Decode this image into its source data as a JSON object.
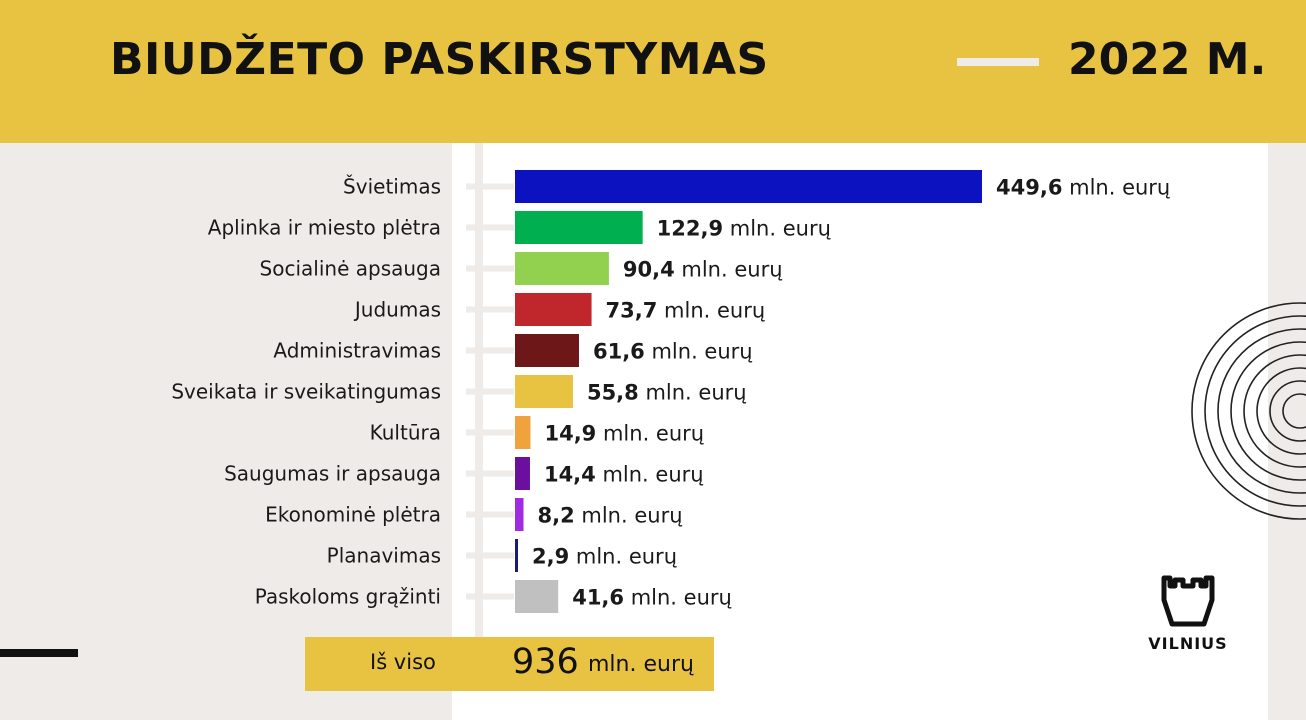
{
  "header": {
    "title": "BIUDŽETO PASKIRSTYMAS",
    "year": "2022 M."
  },
  "chart_data": {
    "type": "bar",
    "orientation": "horizontal",
    "categories": [
      "Švietimas",
      "Aplinka ir miesto plėtra",
      "Socialinė apsauga",
      "Judumas",
      "Administravimas",
      "Sveikata ir sveikatingumas",
      "Kultūra",
      "Saugumas ir apsauga",
      "Ekonominė plėtra",
      "Planavimas",
      "Paskoloms grąžinti"
    ],
    "values": [
      449.6,
      122.9,
      90.4,
      73.7,
      61.6,
      55.8,
      14.9,
      14.4,
      8.2,
      2.9,
      41.6
    ],
    "value_labels": [
      "449,6",
      "122,9",
      "90,4",
      "73,7",
      "61,6",
      "55,8",
      "14,9",
      "14,4",
      "8,2",
      "2,9",
      "41,6"
    ],
    "unit": "mln. eurų",
    "colors": [
      "#0c12c0",
      "#00b050",
      "#92d050",
      "#c0272d",
      "#6d1719",
      "#e8c342",
      "#f0a23c",
      "#6a0f9e",
      "#a02be0",
      "#1a1a7a",
      "#c0c0c0"
    ],
    "label_colors": [
      "#1a1a1a",
      "#1a1a1a",
      "#1a1a1a",
      "#1a1a1a",
      "#1a1a1a",
      "#1a1a1a",
      "#1a1a1a",
      "#1a1a1a",
      "#1a1a1a",
      "#1a1a1a",
      "#666666"
    ],
    "xlim": [
      0,
      449.6
    ]
  },
  "total": {
    "label": "Iš viso",
    "value": "936",
    "unit": "mln. eurų"
  },
  "logo": {
    "text": "VILNIUS"
  }
}
